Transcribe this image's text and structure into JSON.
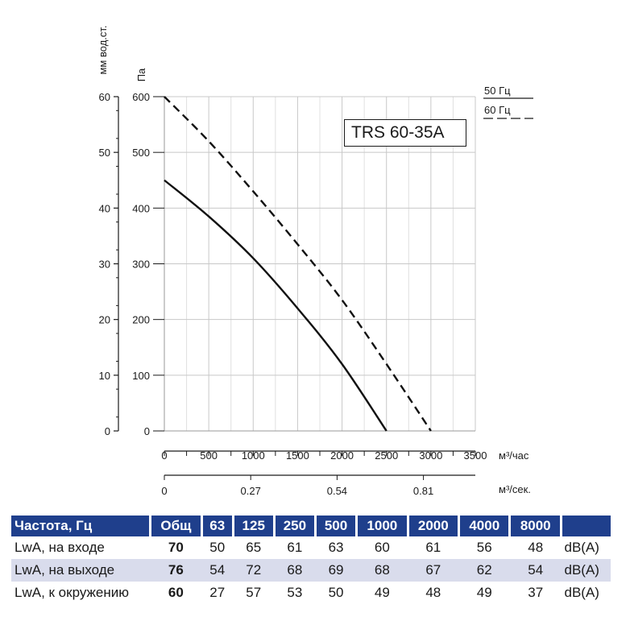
{
  "chart_data": {
    "type": "line",
    "model": "TRS 60-35A",
    "y_left_unit": "мм вод.ст.",
    "y_left_ticks": [
      "0",
      "10",
      "20",
      "30",
      "40",
      "50",
      "60"
    ],
    "y_right_unit": "Па",
    "y_right_ticks": [
      "0",
      "100",
      "200",
      "300",
      "400",
      "500",
      "600"
    ],
    "ylim": [
      0,
      600
    ],
    "x_unit": "м³/час",
    "x_ticks": [
      "0",
      "500",
      "1000",
      "1500",
      "2000",
      "2500",
      "3000",
      "3500"
    ],
    "xlim": [
      0,
      3500
    ],
    "x2_unit": "м³/сек.",
    "x2_ticks": [
      "0",
      "0.27",
      "0.54",
      "0.81"
    ],
    "x2_tick_positions": [
      0,
      972,
      1944,
      2916
    ],
    "grid": true,
    "legend": {
      "series_50": "50 Гц",
      "series_60": "60 Гц",
      "placement": "top-right"
    },
    "series": [
      {
        "name": "50 Гц",
        "style": "solid",
        "x": [
          0,
          500,
          1000,
          1500,
          2000,
          2500
        ],
        "y": [
          450,
          385,
          310,
          220,
          120,
          0
        ]
      },
      {
        "name": "60 Гц",
        "style": "dashed",
        "x": [
          0,
          500,
          1000,
          1500,
          2000,
          2500,
          3000
        ],
        "y": [
          600,
          520,
          430,
          335,
          235,
          120,
          0
        ]
      }
    ]
  },
  "table": {
    "header": [
      "Частота, Гц",
      "Общ",
      "63",
      "125",
      "250",
      "500",
      "1000",
      "2000",
      "4000",
      "8000",
      ""
    ],
    "rows": [
      {
        "label": "LwA, на входе",
        "total": "70",
        "values": [
          "50",
          "65",
          "61",
          "63",
          "60",
          "61",
          "56",
          "48"
        ],
        "unit": "dB(A)"
      },
      {
        "label": "LwA, на выходе",
        "total": "76",
        "values": [
          "54",
          "72",
          "68",
          "69",
          "68",
          "67",
          "62",
          "54"
        ],
        "unit": "dB(A)"
      },
      {
        "label": "LwA, к окружению",
        "total": "60",
        "values": [
          "27",
          "57",
          "53",
          "50",
          "49",
          "48",
          "49",
          "37"
        ],
        "unit": "dB(A)"
      }
    ]
  },
  "colors": {
    "header_bg": "#1f3f8c",
    "row_shade": "#d9dcec",
    "curve": "#111111"
  }
}
